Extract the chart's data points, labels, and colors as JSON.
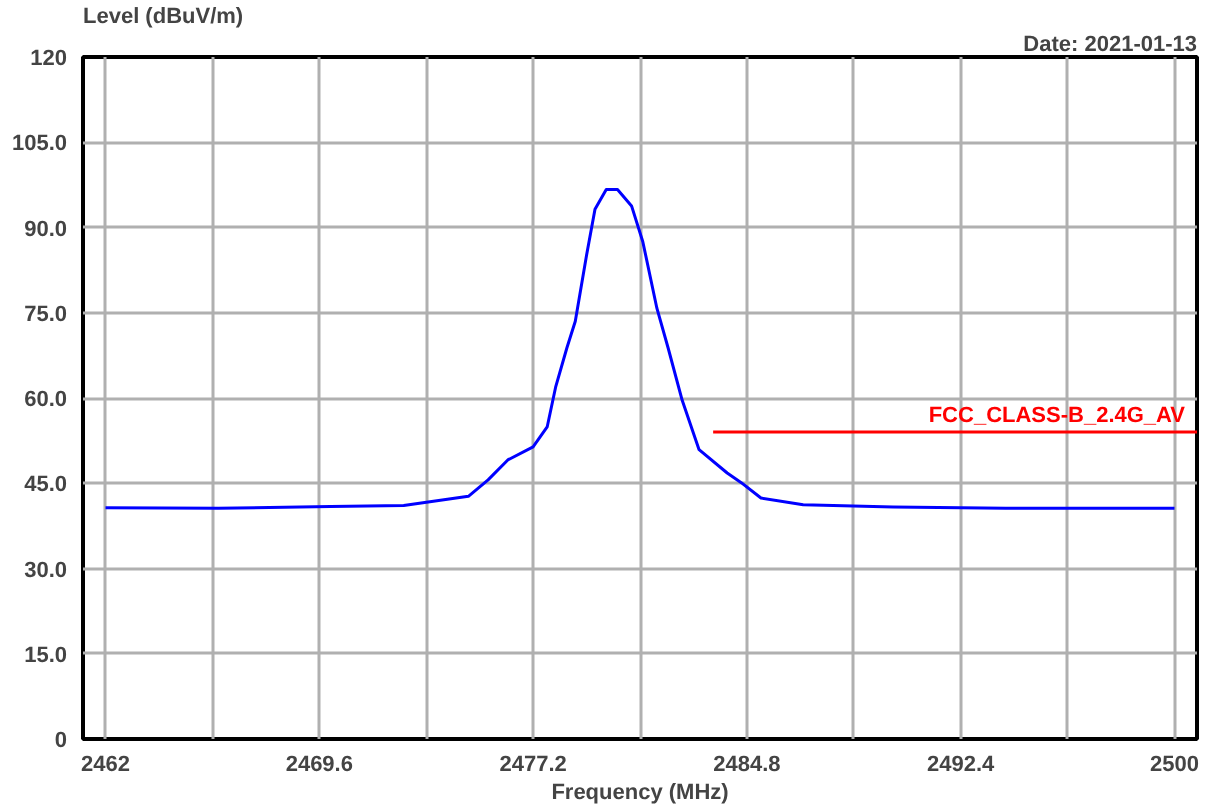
{
  "chart_data": {
    "type": "line",
    "ylabel": "Level (dBuV/m)",
    "xlabel": "Frequency (MHz)",
    "annotations": [
      "Date: 2021-01-13"
    ],
    "xlim": [
      2461.2,
      2500.8
    ],
    "ylim": [
      0,
      120
    ],
    "xticks": [
      2462,
      {
        "value": 2465.8,
        "label": null
      },
      2469.6,
      {
        "value": 2473.4,
        "label": null
      },
      2477.2,
      {
        "value": 2481.0,
        "label": null
      },
      2484.8,
      {
        "value": 2488.6,
        "label": null
      },
      2492.4,
      {
        "value": 2496.2,
        "label": null
      },
      2500
    ],
    "yticks": [
      0,
      {
        "value": 15,
        "label": "15.0"
      },
      {
        "value": 30,
        "label": "30.0"
      },
      {
        "value": 45,
        "label": "45.0"
      },
      {
        "value": 60,
        "label": "60.0"
      },
      {
        "value": 75,
        "label": "75.0"
      },
      {
        "value": 90,
        "label": "90.0"
      },
      {
        "value": 105,
        "label": "105.0"
      },
      120
    ],
    "grid": true,
    "marker": "none",
    "series": [
      {
        "color": "#0000ff",
        "x": [
          2462,
          2466,
          2470,
          2472.6,
          2474.9,
          2475.6,
          2476.3,
          2477.2,
          2477.7,
          2478.0,
          2478.4,
          2478.7,
          2479.1,
          2479.4,
          2479.8,
          2480.2,
          2480.7,
          2481.1,
          2481.6,
          2482.0,
          2482.5,
          2483.1,
          2484.1,
          2484.6,
          2485.3,
          2486.8,
          2490,
          2494,
          2500
        ],
        "values": [
          40.7,
          40.6,
          40.9,
          41.1,
          42.7,
          45.6,
          49.1,
          51.4,
          54.9,
          61.9,
          68.8,
          73.5,
          85.1,
          93.2,
          96.7,
          96.7,
          93.8,
          87.5,
          75.8,
          68.8,
          59.6,
          50.9,
          46.8,
          45.1,
          42.4,
          41.2,
          40.8,
          40.6,
          40.6
        ]
      },
      {
        "name": "FCC_CLASS-B_2.4G_AV",
        "color": "#ff0000",
        "x": [
          2483.6,
          2500.8
        ],
        "values": [
          54,
          54
        ]
      }
    ]
  }
}
